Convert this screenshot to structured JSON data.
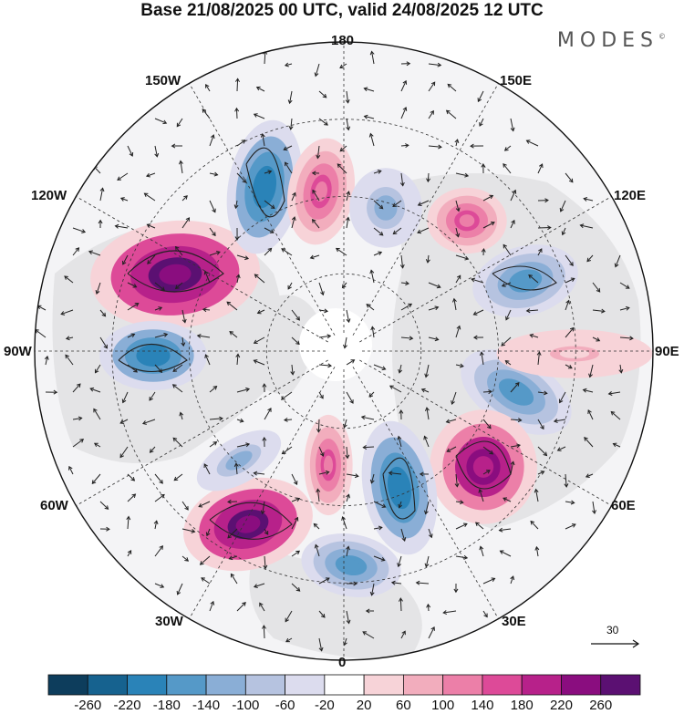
{
  "title": "Base 21/08/2025 00 UTC, valid 24/08/2025 12 UTC",
  "brand": "MODES",
  "brand_mark": "©",
  "longitude_labels": {
    "top": "180",
    "bottom": "0",
    "left": "90W",
    "right": "90E",
    "upper_left_1": "150W",
    "upper_left_2": "120W",
    "upper_right_1": "150E",
    "upper_right_2": "120E",
    "lower_left_1": "60W",
    "lower_left_2": "30W",
    "lower_right_1": "60E",
    "lower_right_2": "30E"
  },
  "vector_scale": {
    "label": "30"
  },
  "colorbar": {
    "ticks": [
      "-260",
      "-220",
      "-180",
      "-140",
      "-100",
      "-60",
      "-20",
      "20",
      "60",
      "100",
      "140",
      "180",
      "220",
      "260"
    ],
    "colors": [
      "#0d3d5c",
      "#16628f",
      "#2a83b8",
      "#5599c8",
      "#8aaed6",
      "#b6c3e0",
      "#dcdcee",
      "#ffffff",
      "#f7d3d8",
      "#f2adbd",
      "#ec7fa8",
      "#dd4a98",
      "#b7218a",
      "#8a0d7f",
      "#5b1072"
    ]
  },
  "anomaly_centers": [
    {
      "name": "center-120w-positive",
      "value": 260
    },
    {
      "name": "center-90w-negative",
      "value": -180
    },
    {
      "name": "center-150w-negative",
      "value": -180
    },
    {
      "name": "center-165w-positive",
      "value": 140
    },
    {
      "name": "center-170e-negative",
      "value": -100
    },
    {
      "name": "center-140e-positive",
      "value": 140
    },
    {
      "name": "center-110e-negative",
      "value": -140
    },
    {
      "name": "center-75e-negative",
      "value": -140
    },
    {
      "name": "center-55e-positive",
      "value": 220
    },
    {
      "name": "center-30e-negative",
      "value": -180
    },
    {
      "name": "center-10w-positive",
      "value": 140
    },
    {
      "name": "center-40w-positive",
      "value": 260
    },
    {
      "name": "center-20e-negative",
      "value": -140
    },
    {
      "name": "center-60w-negative",
      "value": -100
    },
    {
      "name": "center-100e-positive",
      "value": 60
    }
  ]
}
